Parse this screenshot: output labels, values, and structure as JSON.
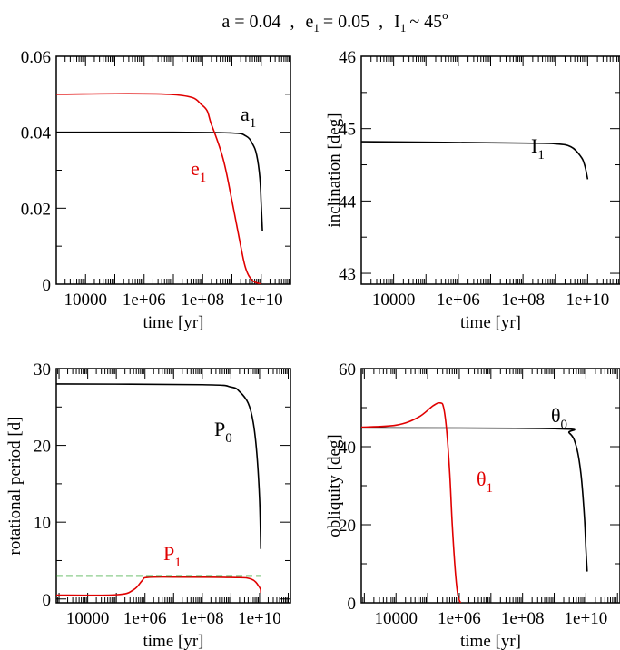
{
  "figure": {
    "title": {
      "a": "a = 0.04",
      "sep1": ",",
      "e": "e",
      "e_sub": "1",
      "e_val": "= 0.05",
      "sep2": ",",
      "I": "I",
      "I_sub": "1",
      "I_val": "~ 45",
      "I_sup": "o"
    }
  },
  "colors": {
    "black": "#000000",
    "red": "#e00000",
    "green": "#1a9a1a"
  },
  "chart_data": [
    {
      "id": "semi-major-axis-eccentricity",
      "type": "line",
      "xscale": "log10",
      "xlim": [
        1000,
        100000000000
      ],
      "ylim": [
        0,
        0.06
      ],
      "xticks": [
        10000,
        1000000,
        100000000,
        10000000000
      ],
      "xtick_labels": [
        "10000",
        "1e+06",
        "1e+08",
        "1e+10"
      ],
      "yticks": [
        0,
        0.02,
        0.04,
        0.06
      ],
      "ytick_labels": [
        "0",
        "0.02",
        "0.04",
        "0.06"
      ],
      "xlabel": "time  [yr]",
      "ylabel": "",
      "series": [
        {
          "name": "a",
          "sub": "1",
          "color": "black",
          "points": [
            [
              1000,
              0.04
            ],
            [
              100000,
              0.04
            ],
            [
              10000000,
              0.04
            ],
            [
              1000000000,
              0.0398
            ],
            [
              3000000000,
              0.039
            ],
            [
              5000000000,
              0.037
            ],
            [
              7000000000,
              0.034
            ],
            [
              9000000000,
              0.028
            ],
            [
              10000000000,
              0.021
            ],
            [
              11000000000,
              0.014
            ]
          ]
        },
        {
          "name": "e",
          "sub": "1",
          "color": "red",
          "points": [
            [
              1000,
              0.05
            ],
            [
              10000000,
              0.0499
            ],
            [
              100000000,
              0.047
            ],
            [
              200000000,
              0.042
            ],
            [
              500000000,
              0.033
            ],
            [
              1000000000,
              0.022
            ],
            [
              2000000000,
              0.01
            ],
            [
              3000000000,
              0.004
            ],
            [
              5000000000,
              0.001
            ],
            [
              10000000000,
              0
            ]
          ]
        }
      ]
    },
    {
      "id": "inclination",
      "type": "line",
      "xscale": "log10",
      "xlim": [
        1000,
        100000000000
      ],
      "ylim": [
        42.85,
        46
      ],
      "xticks": [
        10000,
        1000000,
        100000000,
        10000000000
      ],
      "xtick_labels": [
        "10000",
        "1e+06",
        "1e+08",
        "1e+10"
      ],
      "yticks": [
        43,
        44,
        45,
        46
      ],
      "ytick_labels": [
        "43",
        "44",
        "45",
        "46"
      ],
      "xlabel": "time  [yr]",
      "ylabel": "inclination  [deg]",
      "series": [
        {
          "name": "I",
          "sub": "1",
          "color": "black",
          "points": [
            [
              1000,
              44.82
            ],
            [
              100000000,
              44.8
            ],
            [
              1000000000,
              44.79
            ],
            [
              3000000000,
              44.75
            ],
            [
              6000000000,
              44.62
            ],
            [
              8000000000,
              44.5
            ],
            [
              10000000000,
              44.3
            ]
          ]
        }
      ]
    },
    {
      "id": "rotational-period",
      "type": "line",
      "xscale": "log10",
      "xlim": [
        800,
        120000000000
      ],
      "ylim": [
        -0.5,
        30
      ],
      "xticks": [
        10000,
        1000000,
        100000000,
        10000000000
      ],
      "xtick_labels": [
        "10000",
        "1e+06",
        "1e+08",
        "1e+10"
      ],
      "yticks": [
        0,
        10,
        20,
        30
      ],
      "ytick_labels": [
        "0",
        "10",
        "20",
        "30"
      ],
      "xlabel": "time  [yr]",
      "ylabel": "rotational period  [d]",
      "series": [
        {
          "name": "P",
          "sub": "0",
          "color": "black",
          "points": [
            [
              800,
              28
            ],
            [
              100000000,
              27.9
            ],
            [
              1000000000,
              27.6
            ],
            [
              2000000000,
              27
            ],
            [
              4000000000,
              25.5
            ],
            [
              6000000000,
              23
            ],
            [
              8000000000,
              19
            ],
            [
              10000000000,
              13
            ],
            [
              11000000000,
              6.5
            ]
          ]
        },
        {
          "name": "P",
          "sub": "1",
          "color": "red",
          "points": [
            [
              800,
              0.5
            ],
            [
              100000,
              0.55
            ],
            [
              400000,
              1.2
            ],
            [
              800000,
              2.4
            ],
            [
              1200000,
              2.8
            ],
            [
              10000000,
              2.85
            ],
            [
              1000000000,
              2.8
            ],
            [
              5000000000,
              2.6
            ],
            [
              10000000000,
              1.5
            ],
            [
              11000000000,
              0.8
            ]
          ]
        },
        {
          "name": "",
          "color": "green",
          "dashed": true,
          "points": [
            [
              800,
              3
            ],
            [
              11000000000,
              3
            ]
          ]
        }
      ]
    },
    {
      "id": "obliquity",
      "type": "line",
      "xscale": "log10",
      "xlim": [
        800,
        120000000000
      ],
      "ylim": [
        0,
        60
      ],
      "xticks": [
        10000,
        1000000,
        100000000,
        10000000000
      ],
      "xtick_labels": [
        "10000",
        "1e+06",
        "1e+08",
        "1e+10"
      ],
      "yticks": [
        0,
        20,
        40,
        60
      ],
      "ytick_labels": [
        "0",
        "20",
        "40",
        "60"
      ],
      "xlabel": "time  [yr]",
      "ylabel": "obliquity  [deg]",
      "series": [
        {
          "name": "θ",
          "sub": "0",
          "color": "black",
          "points": [
            [
              800,
              44.8
            ],
            [
              1000000000,
              44.6
            ],
            [
              3000000000,
              43.5
            ],
            [
              5000000000,
              40
            ],
            [
              7000000000,
              33
            ],
            [
              9000000000,
              22
            ],
            [
              10000000000,
              14
            ],
            [
              11000000000,
              8
            ]
          ]
        },
        {
          "name": "θ",
          "sub": "1",
          "color": "red",
          "points": [
            [
              800,
              45
            ],
            [
              10000,
              45.5
            ],
            [
              50000,
              47.5
            ],
            [
              150000,
              50.5
            ],
            [
              250000,
              51.2
            ],
            [
              320000,
              50
            ],
            [
              400000,
              44
            ],
            [
              500000,
              33
            ],
            [
              600000,
              20
            ],
            [
              750000,
              8
            ],
            [
              900000,
              2
            ],
            [
              1100000,
              0
            ]
          ]
        }
      ]
    }
  ]
}
